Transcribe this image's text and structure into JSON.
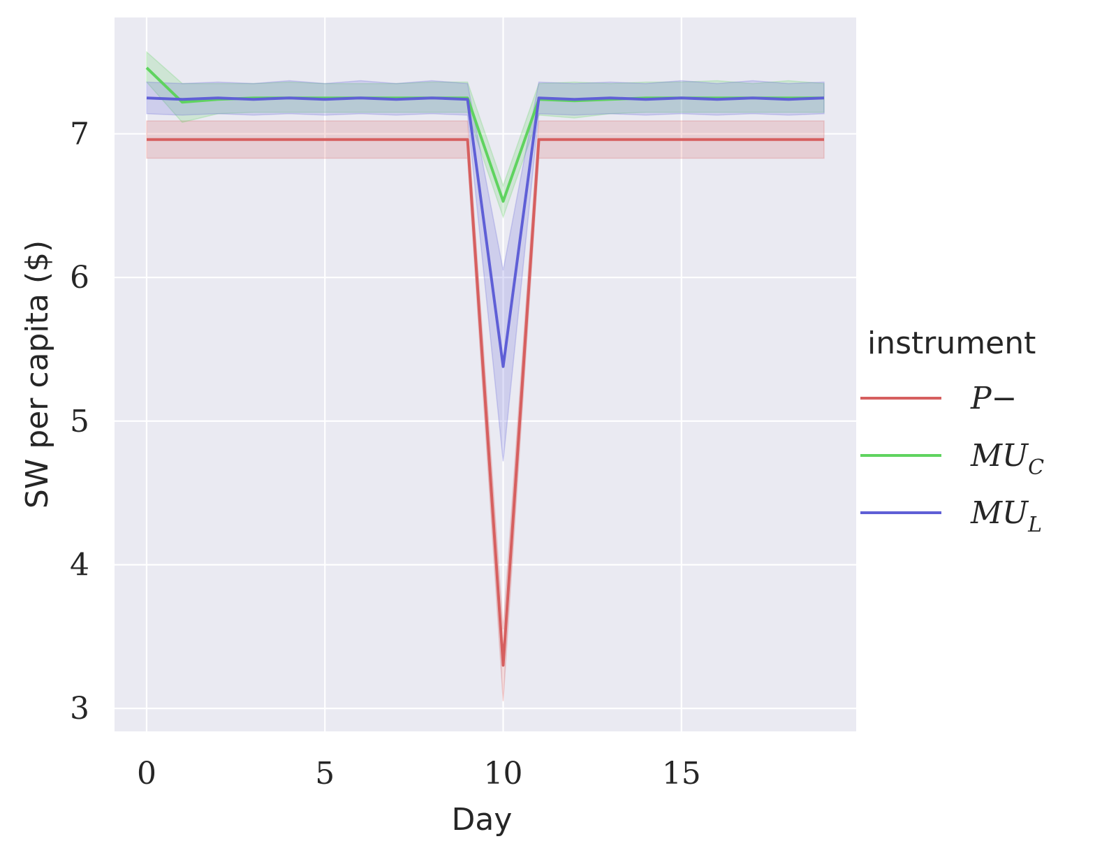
{
  "chart_data": {
    "type": "line",
    "title": "",
    "xlabel": "Day",
    "ylabel": "SW per capita ($)",
    "xlim": [
      -0.9,
      19.9
    ],
    "ylim": [
      2.84,
      7.81
    ],
    "xticks": [
      0,
      5,
      10,
      15
    ],
    "yticks": [
      3,
      4,
      5,
      6,
      7
    ],
    "grid": true,
    "legend": {
      "title": "instrument",
      "placement": "right"
    },
    "x": [
      0,
      1,
      2,
      3,
      4,
      5,
      6,
      7,
      8,
      9,
      10,
      11,
      12,
      13,
      14,
      15,
      16,
      17,
      18,
      19
    ],
    "series": [
      {
        "name": "P−",
        "color": "#d65f5f",
        "values": [
          6.96,
          6.96,
          6.96,
          6.96,
          6.96,
          6.96,
          6.96,
          6.96,
          6.96,
          6.96,
          3.3,
          6.96,
          6.96,
          6.96,
          6.96,
          6.96,
          6.96,
          6.96,
          6.96,
          6.96
        ],
        "ci_low": [
          6.83,
          6.83,
          6.83,
          6.83,
          6.83,
          6.83,
          6.83,
          6.83,
          6.83,
          6.83,
          3.05,
          6.83,
          6.83,
          6.83,
          6.83,
          6.83,
          6.83,
          6.83,
          6.83,
          6.83
        ],
        "ci_high": [
          7.09,
          7.09,
          7.09,
          7.09,
          7.09,
          7.09,
          7.09,
          7.09,
          7.09,
          7.09,
          3.55,
          7.09,
          7.09,
          7.09,
          7.09,
          7.09,
          7.09,
          7.09,
          7.09,
          7.09
        ]
      },
      {
        "name": "MU_C",
        "color": "#5fd35f",
        "values": [
          7.46,
          7.22,
          7.24,
          7.25,
          7.25,
          7.25,
          7.25,
          7.25,
          7.25,
          7.25,
          6.53,
          7.24,
          7.23,
          7.24,
          7.25,
          7.25,
          7.25,
          7.25,
          7.25,
          7.25
        ],
        "ci_low": [
          7.36,
          7.08,
          7.14,
          7.15,
          7.15,
          7.15,
          7.15,
          7.15,
          7.15,
          7.15,
          6.42,
          7.13,
          7.11,
          7.14,
          7.15,
          7.15,
          7.15,
          7.15,
          7.15,
          7.15
        ],
        "ci_high": [
          7.57,
          7.35,
          7.35,
          7.35,
          7.36,
          7.35,
          7.35,
          7.35,
          7.36,
          7.36,
          6.64,
          7.35,
          7.36,
          7.35,
          7.36,
          7.36,
          7.37,
          7.35,
          7.37,
          7.35
        ]
      },
      {
        "name": "MU_L",
        "color": "#5f5fd6",
        "values": [
          7.25,
          7.24,
          7.25,
          7.24,
          7.25,
          7.24,
          7.25,
          7.24,
          7.25,
          7.24,
          5.38,
          7.25,
          7.24,
          7.25,
          7.24,
          7.25,
          7.24,
          7.25,
          7.24,
          7.25
        ],
        "ci_low": [
          7.14,
          7.13,
          7.14,
          7.13,
          7.14,
          7.13,
          7.14,
          7.13,
          7.14,
          7.13,
          4.72,
          7.14,
          7.13,
          7.14,
          7.13,
          7.14,
          7.13,
          7.14,
          7.13,
          7.14
        ],
        "ci_high": [
          7.36,
          7.35,
          7.36,
          7.35,
          7.37,
          7.35,
          7.37,
          7.35,
          7.37,
          7.35,
          6.05,
          7.36,
          7.35,
          7.36,
          7.35,
          7.37,
          7.35,
          7.37,
          7.35,
          7.36
        ]
      }
    ]
  }
}
